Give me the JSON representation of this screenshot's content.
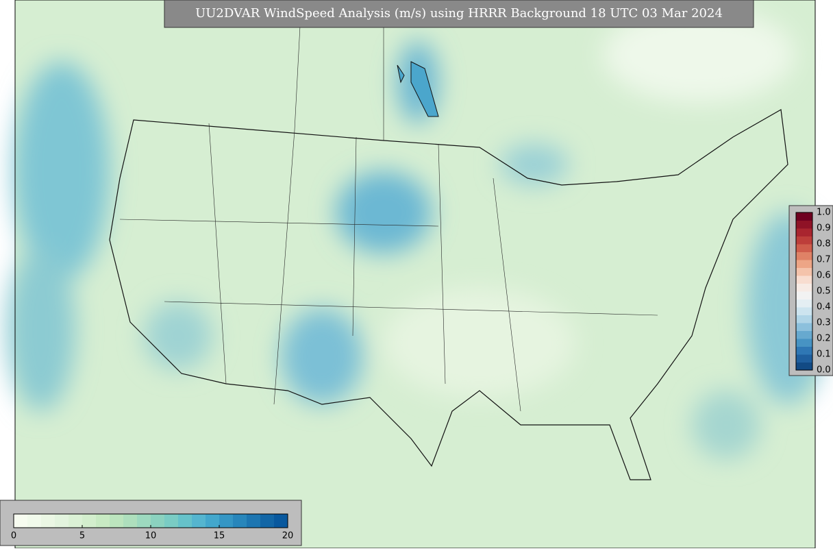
{
  "title": "UU2DVAR WindSpeed Analysis (m/s) using HRRR Background 18 UTC 03 Mar 2024",
  "wind_colorbar": {
    "ticks": [
      0,
      5,
      10,
      15,
      20
    ],
    "colors": [
      "#f7fcf0",
      "#f1faeb",
      "#ebf7e4",
      "#e3f4de",
      "#dbf1d5",
      "#d3eecd",
      "#c8eac3",
      "#bce5be",
      "#aedfbd",
      "#9dd9bf",
      "#8bd2bf",
      "#7accc4",
      "#66c2ca",
      "#55b5cf",
      "#43a7cc",
      "#3596c4",
      "#2886bb",
      "#1d76b1",
      "#1266a6",
      "#08589e"
    ]
  },
  "ratio_colorbar": {
    "ticks": [
      "0.0",
      "0.1",
      "0.2",
      "0.3",
      "0.4",
      "0.5",
      "0.6",
      "0.7",
      "0.8",
      "0.9",
      "1.0"
    ],
    "colors": [
      "#124a84",
      "#1f5f9e",
      "#2f77b4",
      "#4793c3",
      "#67a9cf",
      "#8cc0dc",
      "#b0d5e7",
      "#cde4ef",
      "#e4eef3",
      "#f2f2f2",
      "#f7ebe5",
      "#f8ddd0",
      "#f4c3ab",
      "#eda586",
      "#df8266",
      "#cf5d4c",
      "#bd3e3a",
      "#a9252f",
      "#8f1226",
      "#6f0020"
    ]
  }
}
